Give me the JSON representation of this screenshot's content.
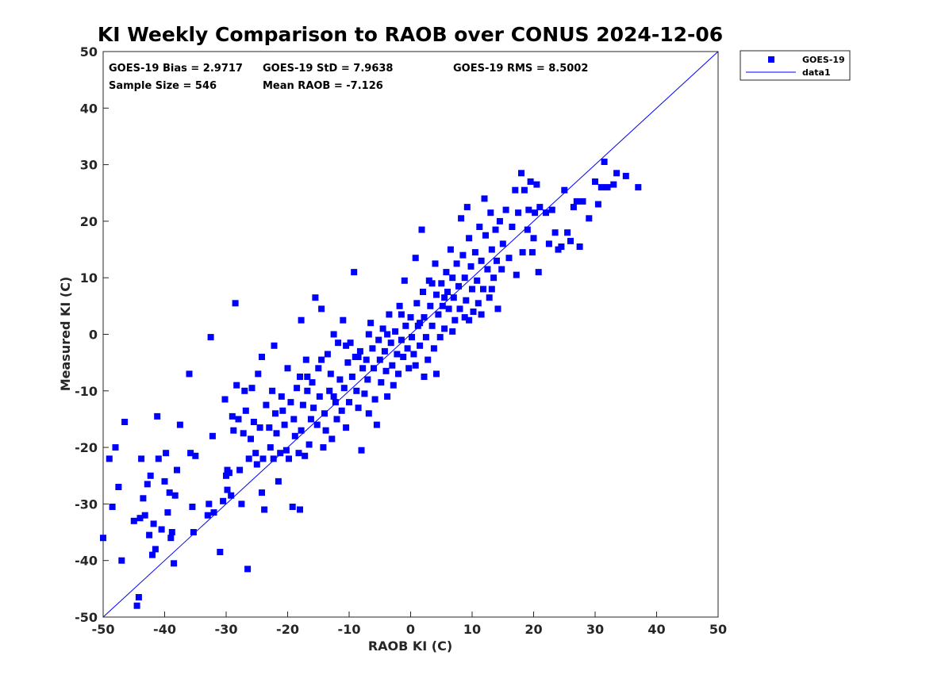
{
  "chart_data": {
    "type": "scatter",
    "title": "KI Weekly Comparison to RAOB over CONUS 2024-12-06",
    "xlabel": "RAOB KI (C)",
    "ylabel": "Measured KI (C)",
    "xlim": [
      -50,
      50
    ],
    "ylim": [
      -50,
      50
    ],
    "xticks": [
      "-50",
      "-40",
      "-30",
      "-20",
      "-10",
      "0",
      "10",
      "20",
      "30",
      "40",
      "50"
    ],
    "yticks": [
      "50",
      "40",
      "30",
      "20",
      "10",
      "0",
      "-10",
      "-20",
      "-30",
      "-40",
      "-50"
    ],
    "grid": false,
    "legend_position": "outside-top-right",
    "stats": {
      "bias": "GOES-19 Bias = 2.9717",
      "std": "GOES-19 StD = 7.9638",
      "rms": "GOES-19 RMS = 8.5002",
      "sample_size": "Sample Size = 546",
      "mean_raob": "Mean RAOB = -7.126"
    },
    "colors": {
      "marker": "#0000ff",
      "line": "#0000ff",
      "axis": "#262626"
    },
    "series": [
      {
        "name": "GOES-19",
        "kind": "markers",
        "points": [
          [
            -50,
            -36
          ],
          [
            -49,
            -22
          ],
          [
            -48.5,
            -30.5
          ],
          [
            -48,
            -20
          ],
          [
            -47.5,
            -27
          ],
          [
            -47,
            -40
          ],
          [
            -46.5,
            -15.5
          ],
          [
            -45,
            -33
          ],
          [
            -44.5,
            -48
          ],
          [
            -44.2,
            -46.5
          ],
          [
            -44,
            -32.5
          ],
          [
            -43.8,
            -22
          ],
          [
            -43.5,
            -29
          ],
          [
            -43.2,
            -32
          ],
          [
            -42.8,
            -26.5
          ],
          [
            -42.5,
            -35.5
          ],
          [
            -42.3,
            -25
          ],
          [
            -42,
            -39
          ],
          [
            -41.8,
            -33.5
          ],
          [
            -41.5,
            -38
          ],
          [
            -41.2,
            -14.5
          ],
          [
            -41,
            -22
          ],
          [
            -40.5,
            -34.5
          ],
          [
            -40,
            -26
          ],
          [
            -39.8,
            -21
          ],
          [
            -39.5,
            -31.5
          ],
          [
            -39.2,
            -28
          ],
          [
            -39,
            -36
          ],
          [
            -38.8,
            -35
          ],
          [
            -38.5,
            -40.5
          ],
          [
            -38.3,
            -28.5
          ],
          [
            -38,
            -24
          ],
          [
            -37.5,
            -16
          ],
          [
            -36,
            -7
          ],
          [
            -35.8,
            -21
          ],
          [
            -35.5,
            -30.5
          ],
          [
            -35.3,
            -35
          ],
          [
            -35,
            -21.5
          ],
          [
            -33,
            -32
          ],
          [
            -32.8,
            -30
          ],
          [
            -32.5,
            -0.5
          ],
          [
            -32.2,
            -18
          ],
          [
            -32,
            -31.5
          ],
          [
            -31,
            -38.5
          ],
          [
            -30.5,
            -29.5
          ],
          [
            -30.2,
            -11.5
          ],
          [
            -30,
            -25
          ],
          [
            -29.8,
            -27.5
          ],
          [
            -29.5,
            -24.5
          ],
          [
            -29.2,
            -28.5
          ],
          [
            -29,
            -14.5
          ],
          [
            -28.8,
            -17
          ],
          [
            -28.5,
            5.5
          ],
          [
            -28.3,
            -9
          ],
          [
            -28,
            -15
          ],
          [
            -27.8,
            -24
          ],
          [
            -27.5,
            -30
          ],
          [
            -27.2,
            -17.5
          ],
          [
            -27,
            -10
          ],
          [
            -26.8,
            -13.5
          ],
          [
            -26.5,
            -41.5
          ],
          [
            -26.3,
            -22
          ],
          [
            -26,
            -18.5
          ],
          [
            -25.8,
            -9.5
          ],
          [
            -25.5,
            -15.5
          ],
          [
            -25.2,
            -21
          ],
          [
            -25,
            -23
          ],
          [
            -24.8,
            -7
          ],
          [
            -24.5,
            -16.5
          ],
          [
            -24.2,
            -28
          ],
          [
            -24,
            -22
          ],
          [
            -23.8,
            -31
          ],
          [
            -23.5,
            -12.5
          ],
          [
            -23,
            -16.5
          ],
          [
            -22.8,
            -20
          ],
          [
            -22.5,
            -10
          ],
          [
            -22.2,
            -2
          ],
          [
            -22,
            -14
          ],
          [
            -21.8,
            -17.5
          ],
          [
            -21.5,
            -26
          ],
          [
            -21.2,
            -21
          ],
          [
            -21,
            -11
          ],
          [
            -20.8,
            -13.5
          ],
          [
            -20.5,
            -16
          ],
          [
            -20.2,
            -20.5
          ],
          [
            -20,
            -6
          ],
          [
            -19.8,
            -22
          ],
          [
            -19.5,
            -12
          ],
          [
            -19.2,
            -30.5
          ],
          [
            -19,
            -15
          ],
          [
            -18.8,
            -18
          ],
          [
            -18.5,
            -9.5
          ],
          [
            -18.2,
            -21
          ],
          [
            -18,
            -31
          ],
          [
            -17.8,
            -17
          ],
          [
            -17.5,
            -12.5
          ],
          [
            -17.2,
            -21.5
          ],
          [
            -17,
            -4.5
          ],
          [
            -16.8,
            -10
          ],
          [
            -16.5,
            -19.5
          ],
          [
            -16.2,
            -15
          ],
          [
            -16,
            -8.5
          ],
          [
            -15.8,
            -13
          ],
          [
            -15.5,
            6.5
          ],
          [
            -15.2,
            -16
          ],
          [
            -15,
            -6
          ],
          [
            -14.8,
            -11
          ],
          [
            -14.5,
            4.5
          ],
          [
            -14.2,
            -20
          ],
          [
            -14,
            -14
          ],
          [
            -13.8,
            -17
          ],
          [
            -13.5,
            -3.5
          ],
          [
            -13.2,
            -10
          ],
          [
            -13,
            -7
          ],
          [
            -12.8,
            -18.5
          ],
          [
            -12.5,
            0
          ],
          [
            -12.2,
            -12
          ],
          [
            -12,
            -15
          ],
          [
            -11.8,
            -1.5
          ],
          [
            -11.5,
            -8
          ],
          [
            -11.2,
            -13.5
          ],
          [
            -11,
            2.5
          ],
          [
            -10.8,
            -9.5
          ],
          [
            -10.5,
            -16.5
          ],
          [
            -10.2,
            -5
          ],
          [
            -10,
            -12
          ],
          [
            -9.8,
            -1.5
          ],
          [
            -9.5,
            -7.5
          ],
          [
            -9.2,
            11
          ],
          [
            -9,
            -4
          ],
          [
            -8.8,
            -10
          ],
          [
            -8.5,
            -13
          ],
          [
            -8.2,
            -3
          ],
          [
            -8,
            -20.5
          ],
          [
            -7.8,
            -6
          ],
          [
            -7.5,
            -10.5
          ],
          [
            -7.2,
            -4.5
          ],
          [
            -7,
            -8
          ],
          [
            -6.8,
            -14
          ],
          [
            -6.5,
            2
          ],
          [
            -6.2,
            -2.5
          ],
          [
            -6,
            -6
          ],
          [
            -5.8,
            -11.5
          ],
          [
            -5.5,
            -16
          ],
          [
            -5.2,
            -1
          ],
          [
            -5,
            -4.5
          ],
          [
            -4.8,
            -8.5
          ],
          [
            -4.5,
            1
          ],
          [
            -4.2,
            -3
          ],
          [
            -4,
            -6.5
          ],
          [
            -3.8,
            -11
          ],
          [
            -3.5,
            3.5
          ],
          [
            -3.2,
            -1.5
          ],
          [
            -3,
            -5.5
          ],
          [
            -2.8,
            -9
          ],
          [
            -2.5,
            0.5
          ],
          [
            -2.2,
            -3.5
          ],
          [
            -2,
            -7
          ],
          [
            -1.8,
            5
          ],
          [
            -1.5,
            -1
          ],
          [
            -1.2,
            -4
          ],
          [
            -1,
            9.5
          ],
          [
            -0.8,
            1.5
          ],
          [
            -0.5,
            -2.5
          ],
          [
            -0.3,
            -6
          ],
          [
            0,
            3
          ],
          [
            0.2,
            -0.5
          ],
          [
            0.5,
            -3.5
          ],
          [
            0.8,
            13.5
          ],
          [
            1,
            5.5
          ],
          [
            1.2,
            1.5
          ],
          [
            1.5,
            -2
          ],
          [
            1.8,
            18.5
          ],
          [
            2,
            7.5
          ],
          [
            2.2,
            3
          ],
          [
            2.5,
            -0.5
          ],
          [
            2.8,
            -4.5
          ],
          [
            3,
            9.5
          ],
          [
            3.2,
            5
          ],
          [
            3.5,
            1.5
          ],
          [
            3.8,
            -2.5
          ],
          [
            4,
            12.5
          ],
          [
            4.2,
            7
          ],
          [
            4.5,
            3.5
          ],
          [
            4.8,
            -0.5
          ],
          [
            5,
            9
          ],
          [
            5.2,
            5
          ],
          [
            5.5,
            1
          ],
          [
            5.8,
            11
          ],
          [
            6,
            7.5
          ],
          [
            6.2,
            4.5
          ],
          [
            6.5,
            15
          ],
          [
            6.8,
            10
          ],
          [
            7,
            6.5
          ],
          [
            7.2,
            2.5
          ],
          [
            7.5,
            12.5
          ],
          [
            7.8,
            8.5
          ],
          [
            8,
            4.5
          ],
          [
            8.2,
            20.5
          ],
          [
            8.5,
            14
          ],
          [
            8.8,
            10
          ],
          [
            9,
            6
          ],
          [
            9.2,
            22.5
          ],
          [
            9.5,
            17
          ],
          [
            9.8,
            12
          ],
          [
            10,
            8
          ],
          [
            10.2,
            4
          ],
          [
            10.5,
            14.5
          ],
          [
            10.8,
            9.5
          ],
          [
            11,
            5.5
          ],
          [
            11.2,
            19
          ],
          [
            11.5,
            13
          ],
          [
            11.8,
            8
          ],
          [
            12,
            24
          ],
          [
            12.2,
            17.5
          ],
          [
            12.5,
            11.5
          ],
          [
            12.8,
            6.5
          ],
          [
            13,
            21.5
          ],
          [
            13.2,
            15
          ],
          [
            13.5,
            10
          ],
          [
            13.8,
            18.5
          ],
          [
            14,
            13
          ],
          [
            14.2,
            4.5
          ],
          [
            14.5,
            20
          ],
          [
            14.8,
            11.5
          ],
          [
            15,
            16
          ],
          [
            15.5,
            22
          ],
          [
            16,
            13.5
          ],
          [
            16.5,
            19
          ],
          [
            17,
            25.5
          ],
          [
            17.2,
            10.5
          ],
          [
            17.5,
            21.5
          ],
          [
            18,
            28.5
          ],
          [
            18.2,
            14.5
          ],
          [
            18.5,
            25.5
          ],
          [
            19,
            18.5
          ],
          [
            19.2,
            22
          ],
          [
            19.5,
            27
          ],
          [
            19.8,
            14.5
          ],
          [
            20,
            17
          ],
          [
            20.2,
            21.5
          ],
          [
            20.5,
            26.5
          ],
          [
            20.8,
            11
          ],
          [
            21,
            22.5
          ],
          [
            22,
            21.5
          ],
          [
            22.5,
            16
          ],
          [
            23,
            22
          ],
          [
            23.5,
            18
          ],
          [
            24,
            15
          ],
          [
            24.5,
            15.5
          ],
          [
            25,
            25.5
          ],
          [
            25.5,
            18
          ],
          [
            26,
            16.5
          ],
          [
            26.5,
            22.5
          ],
          [
            27,
            23.5
          ],
          [
            27.5,
            15.5
          ],
          [
            28,
            23.5
          ],
          [
            29,
            20.5
          ],
          [
            30,
            27
          ],
          [
            30.5,
            23
          ],
          [
            31,
            26
          ],
          [
            31.5,
            30.5
          ],
          [
            32,
            26
          ],
          [
            33,
            26.5
          ],
          [
            33.5,
            28.5
          ],
          [
            35,
            28
          ],
          [
            37,
            26
          ],
          [
            -29.8,
            -24
          ],
          [
            -22.3,
            -22
          ],
          [
            -18,
            -7.5
          ],
          [
            -8.5,
            -4
          ],
          [
            -3.8,
            0
          ],
          [
            1.5,
            2
          ],
          [
            4.2,
            -7
          ],
          [
            6.8,
            0.5
          ],
          [
            9.5,
            2.5
          ],
          [
            -24.2,
            -4
          ],
          [
            -17.8,
            2.5
          ],
          [
            -16.8,
            -7.5
          ],
          [
            -14.5,
            -4.5
          ],
          [
            -12.5,
            -11
          ],
          [
            -10.5,
            -2
          ],
          [
            -6.8,
            0
          ],
          [
            -1.5,
            3.5
          ],
          [
            3.5,
            9
          ],
          [
            0.8,
            -5.5
          ],
          [
            2.2,
            -7.5
          ],
          [
            5.5,
            6.5
          ],
          [
            8.8,
            3
          ],
          [
            11.5,
            3.5
          ],
          [
            13.2,
            8
          ]
        ]
      },
      {
        "name": "data1",
        "kind": "line",
        "points": [
          [
            -50,
            -50
          ],
          [
            50,
            50
          ]
        ]
      }
    ]
  }
}
